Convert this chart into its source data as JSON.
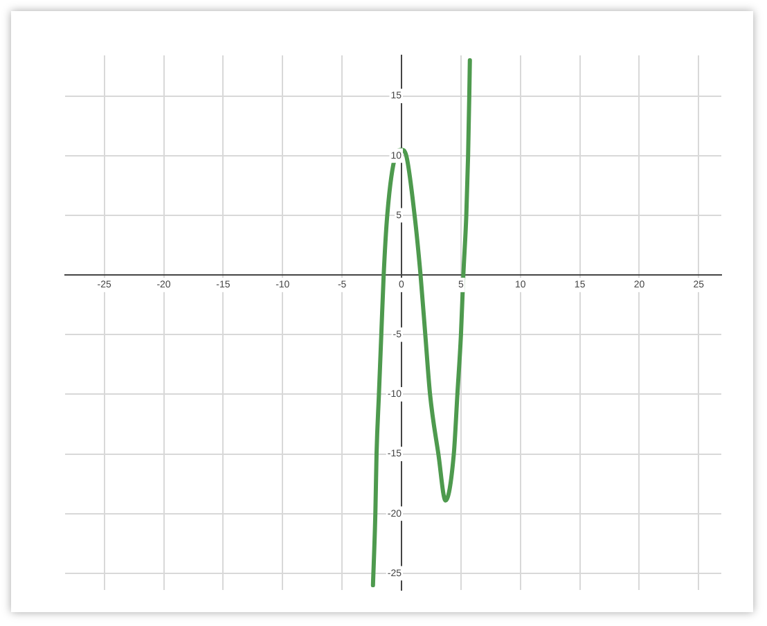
{
  "chart_data": {
    "type": "line",
    "x": [
      -2.4,
      -2.2,
      -2.1,
      -1.9,
      -1.7,
      -1.5,
      -1.2,
      -0.5,
      0,
      0.4,
      1.1,
      1.6,
      2.0,
      2.4,
      3.1,
      3.7,
      4.4,
      4.7,
      5.0,
      5.2,
      5.45,
      5.6,
      5.7,
      5.75
    ],
    "series": [
      {
        "color": "#4e9a4e",
        "values": [
          -26,
          -20,
          -15,
          -10,
          -5,
          0,
          5,
          10,
          10.5,
          10,
          5,
          0,
          -5,
          -10,
          -15,
          -18.9,
          -15,
          -10,
          -5,
          0,
          5,
          10,
          15,
          18
        ]
      }
    ],
    "xlim": [
      -28.3,
      26.9
    ],
    "ylim": [
      -26.4,
      18.4
    ],
    "xticks": [
      -25,
      -20,
      -15,
      -10,
      -5,
      0,
      5,
      10,
      15,
      20,
      25
    ],
    "yticks": [
      -25,
      -20,
      -15,
      -10,
      -5,
      5,
      10,
      15
    ],
    "grid": true,
    "legend": false,
    "marker": "none",
    "line_style": "solid"
  }
}
